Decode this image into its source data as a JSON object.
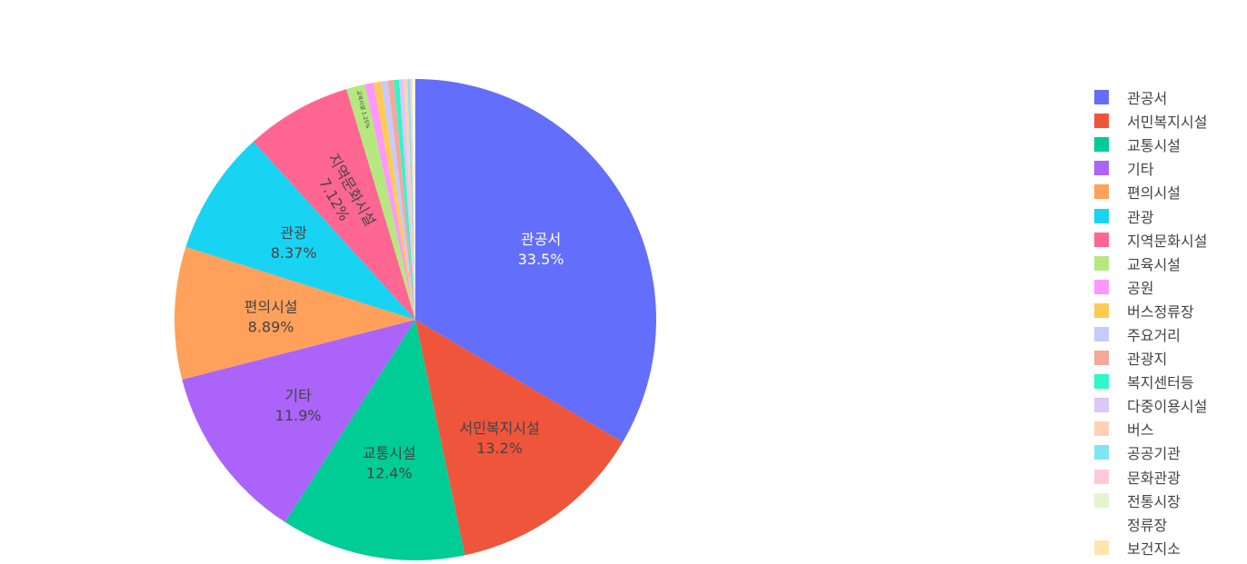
{
  "chart_data": {
    "type": "pie",
    "slices": [
      {
        "label": "관공서",
        "percent": 33.5,
        "color": "#636efa",
        "text_color": "#ffffff"
      },
      {
        "label": "서민복지시설",
        "percent": 13.2,
        "color": "#ef553b",
        "text_color": "#444444"
      },
      {
        "label": "교통시설",
        "percent": 12.4,
        "color": "#00cc96",
        "text_color": "#444444"
      },
      {
        "label": "기타",
        "percent": 11.9,
        "color": "#ab63fa",
        "text_color": "#444444"
      },
      {
        "label": "편의시설",
        "percent": 8.89,
        "color": "#ffa15a",
        "text_color": "#444444"
      },
      {
        "label": "관광",
        "percent": 8.37,
        "color": "#19d3f3",
        "text_color": "#444444"
      },
      {
        "label": "지역문화시설",
        "percent": 7.12,
        "color": "#ff6692",
        "text_color": "#444444"
      },
      {
        "label": "교육시설",
        "percent": 1.25,
        "color": "#b6e880",
        "text_color": "#444444"
      },
      {
        "label": "공원",
        "percent": 0.6,
        "color": "#ff97ff",
        "text_color": "#444444"
      },
      {
        "label": "버스정류장",
        "percent": 0.5,
        "color": "#fecb52",
        "text_color": "#444444"
      },
      {
        "label": "주요거리",
        "percent": 0.45,
        "color": "#c6cafd",
        "text_color": "#444444"
      },
      {
        "label": "관광지",
        "percent": 0.4,
        "color": "#f7a799",
        "text_color": "#444444"
      },
      {
        "label": "복지센터등",
        "percent": 0.35,
        "color": "#2ef7c9",
        "text_color": "#444444"
      },
      {
        "label": "다중이용시설",
        "percent": 0.3,
        "color": "#dec5fa",
        "text_color": "#444444"
      },
      {
        "label": "버스",
        "percent": 0.25,
        "color": "#fdd2b6",
        "text_color": "#444444"
      },
      {
        "label": "공공기관",
        "percent": 0.15,
        "color": "#7ee6f2",
        "text_color": "#444444"
      },
      {
        "label": "문화관광",
        "percent": 0.12,
        "color": "#ffcad8",
        "text_color": "#444444"
      },
      {
        "label": "전통시장",
        "percent": 0.1,
        "color": "#e3f5cf",
        "text_color": "#444444"
      },
      {
        "label": "정류장",
        "percent": 0.08,
        "color": "#ffffff",
        "text_color": "#444444"
      },
      {
        "label": "보건지소",
        "percent": 0.07,
        "color": "#fee6b0",
        "text_color": "#444444"
      }
    ],
    "legend_position": "right",
    "title": ""
  }
}
